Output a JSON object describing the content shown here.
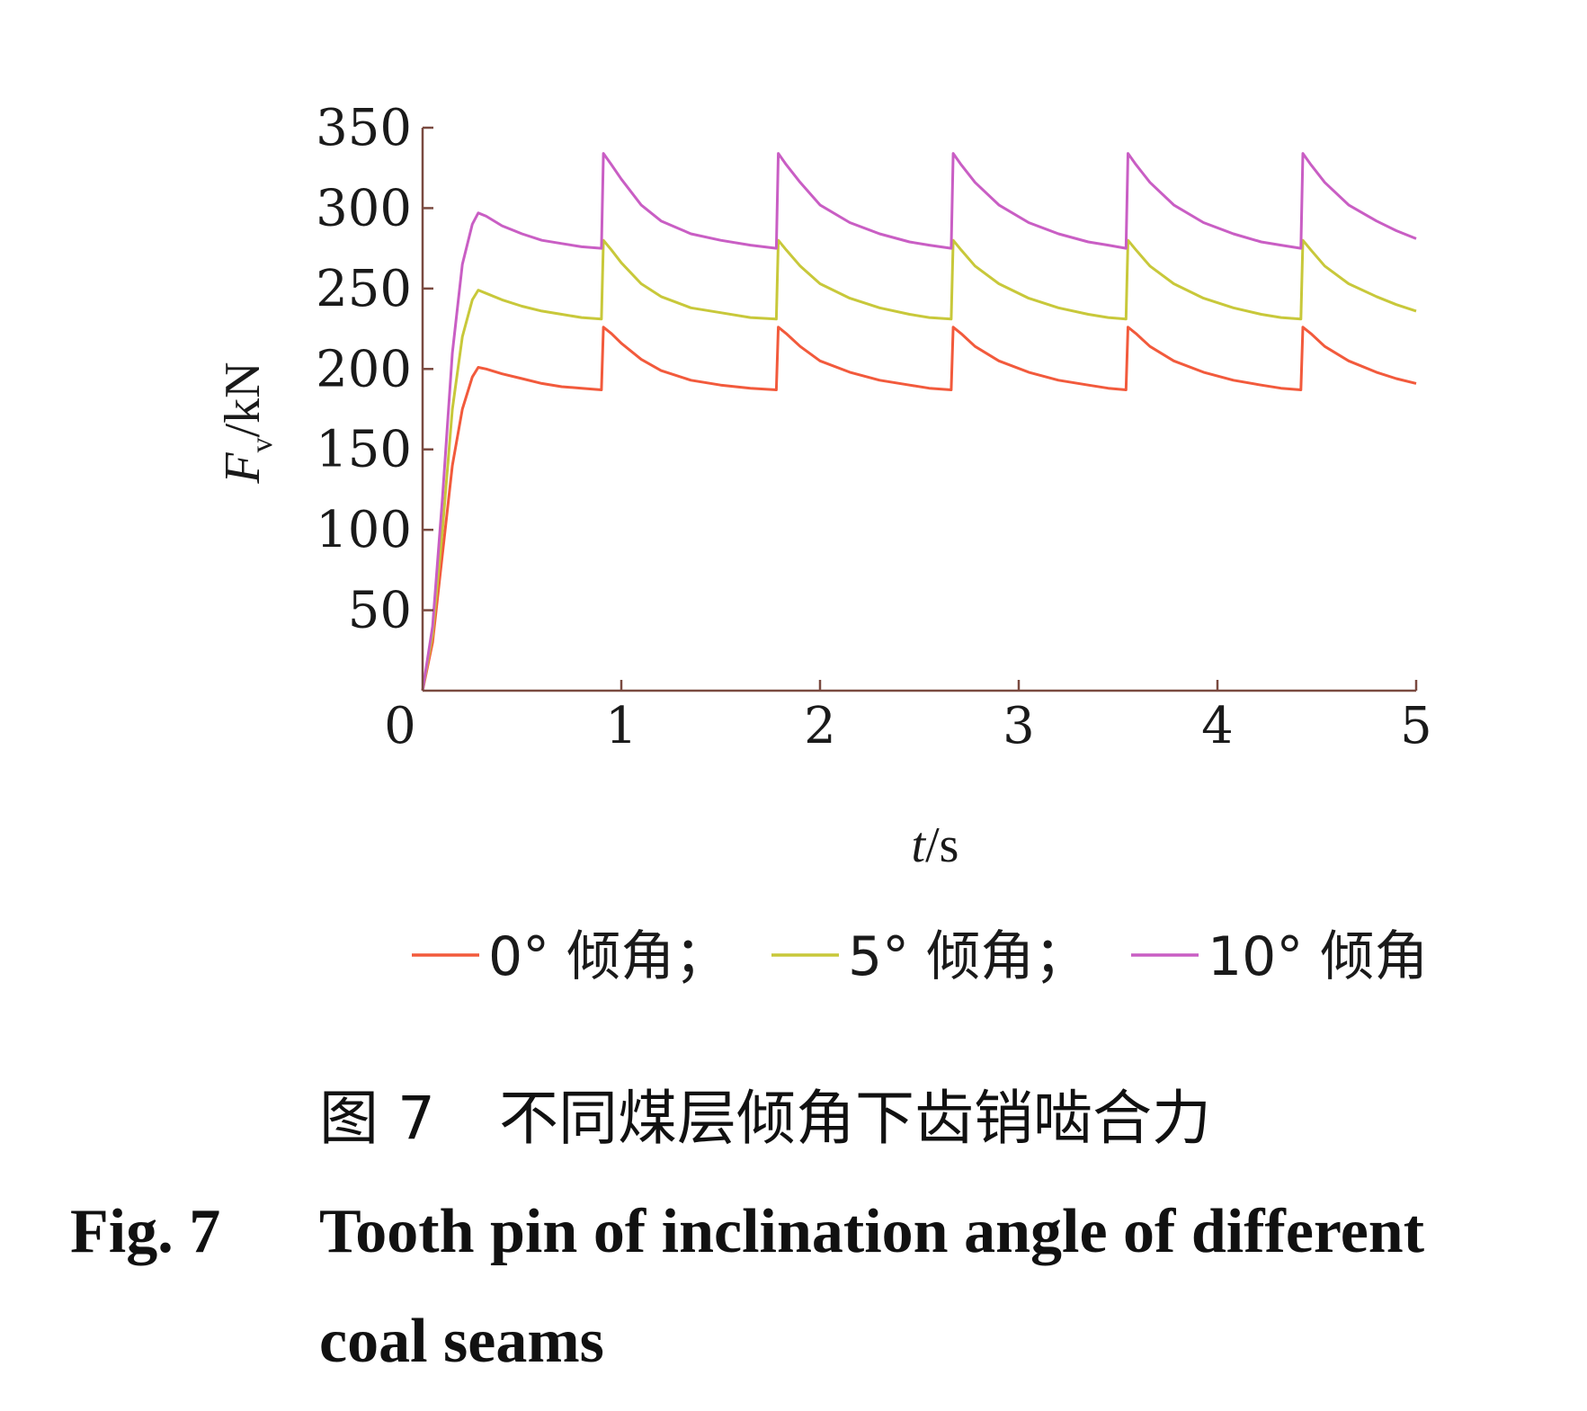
{
  "chart_data": {
    "type": "line",
    "xlabel": "t/s",
    "ylabel": "Fv/kN",
    "xlim": [
      0,
      5
    ],
    "ylim": [
      0,
      350
    ],
    "x_ticks": [
      "0",
      "1",
      "2",
      "3",
      "4",
      "5"
    ],
    "y_ticks": [
      "50",
      "100",
      "150",
      "200",
      "250",
      "300",
      "350"
    ],
    "grid": false,
    "legend_position": "bottom",
    "series": [
      {
        "name": "0° 倾角；",
        "color": "#f25a3c",
        "points": [
          [
            0,
            0
          ],
          [
            0.05,
            30
          ],
          [
            0.1,
            85
          ],
          [
            0.15,
            140
          ],
          [
            0.2,
            175
          ],
          [
            0.25,
            195
          ],
          [
            0.28,
            201
          ],
          [
            0.32,
            200
          ],
          [
            0.4,
            197
          ],
          [
            0.5,
            194
          ],
          [
            0.6,
            191
          ],
          [
            0.7,
            189
          ],
          [
            0.8,
            188
          ],
          [
            0.9,
            187
          ],
          [
            0.9,
            187
          ],
          [
            0.91,
            226
          ],
          [
            0.95,
            222
          ],
          [
            1.0,
            216
          ],
          [
            1.1,
            206
          ],
          [
            1.2,
            199
          ],
          [
            1.35,
            193
          ],
          [
            1.5,
            190
          ],
          [
            1.65,
            188
          ],
          [
            1.78,
            187
          ],
          [
            1.78,
            187
          ],
          [
            1.79,
            226
          ],
          [
            1.83,
            222
          ],
          [
            1.9,
            214
          ],
          [
            2.0,
            205
          ],
          [
            2.15,
            198
          ],
          [
            2.3,
            193
          ],
          [
            2.45,
            190
          ],
          [
            2.55,
            188
          ],
          [
            2.66,
            187
          ],
          [
            2.66,
            187
          ],
          [
            2.67,
            226
          ],
          [
            2.71,
            222
          ],
          [
            2.78,
            214
          ],
          [
            2.9,
            205
          ],
          [
            3.05,
            198
          ],
          [
            3.2,
            193
          ],
          [
            3.35,
            190
          ],
          [
            3.45,
            188
          ],
          [
            3.54,
            187
          ],
          [
            3.54,
            187
          ],
          [
            3.55,
            226
          ],
          [
            3.59,
            222
          ],
          [
            3.66,
            214
          ],
          [
            3.78,
            205
          ],
          [
            3.93,
            198
          ],
          [
            4.08,
            193
          ],
          [
            4.22,
            190
          ],
          [
            4.32,
            188
          ],
          [
            4.42,
            187
          ],
          [
            4.42,
            187
          ],
          [
            4.43,
            226
          ],
          [
            4.47,
            222
          ],
          [
            4.54,
            214
          ],
          [
            4.66,
            205
          ],
          [
            4.8,
            198
          ],
          [
            4.9,
            194
          ],
          [
            5.0,
            191
          ]
        ]
      },
      {
        "name": "5° 倾角；",
        "color": "#c8c83a",
        "points": [
          [
            0,
            0
          ],
          [
            0.05,
            35
          ],
          [
            0.1,
            100
          ],
          [
            0.15,
            175
          ],
          [
            0.2,
            220
          ],
          [
            0.25,
            243
          ],
          [
            0.28,
            249
          ],
          [
            0.32,
            247
          ],
          [
            0.4,
            243
          ],
          [
            0.5,
            239
          ],
          [
            0.6,
            236
          ],
          [
            0.7,
            234
          ],
          [
            0.8,
            232
          ],
          [
            0.9,
            231
          ],
          [
            0.9,
            231
          ],
          [
            0.91,
            280
          ],
          [
            0.95,
            274
          ],
          [
            1.0,
            266
          ],
          [
            1.1,
            253
          ],
          [
            1.2,
            245
          ],
          [
            1.35,
            238
          ],
          [
            1.5,
            235
          ],
          [
            1.65,
            232
          ],
          [
            1.78,
            231
          ],
          [
            1.78,
            231
          ],
          [
            1.79,
            280
          ],
          [
            1.83,
            274
          ],
          [
            1.9,
            264
          ],
          [
            2.0,
            253
          ],
          [
            2.15,
            244
          ],
          [
            2.3,
            238
          ],
          [
            2.45,
            234
          ],
          [
            2.55,
            232
          ],
          [
            2.66,
            231
          ],
          [
            2.66,
            231
          ],
          [
            2.67,
            280
          ],
          [
            2.71,
            274
          ],
          [
            2.78,
            264
          ],
          [
            2.9,
            253
          ],
          [
            3.05,
            244
          ],
          [
            3.2,
            238
          ],
          [
            3.35,
            234
          ],
          [
            3.45,
            232
          ],
          [
            3.54,
            231
          ],
          [
            3.54,
            231
          ],
          [
            3.55,
            280
          ],
          [
            3.59,
            274
          ],
          [
            3.66,
            264
          ],
          [
            3.78,
            253
          ],
          [
            3.93,
            244
          ],
          [
            4.08,
            238
          ],
          [
            4.22,
            234
          ],
          [
            4.32,
            232
          ],
          [
            4.42,
            231
          ],
          [
            4.42,
            231
          ],
          [
            4.43,
            280
          ],
          [
            4.47,
            274
          ],
          [
            4.54,
            264
          ],
          [
            4.66,
            253
          ],
          [
            4.8,
            245
          ],
          [
            4.9,
            240
          ],
          [
            5.0,
            236
          ]
        ]
      },
      {
        "name": "10° 倾角",
        "color": "#c95ec4",
        "points": [
          [
            0,
            0
          ],
          [
            0.05,
            40
          ],
          [
            0.1,
            120
          ],
          [
            0.15,
            210
          ],
          [
            0.2,
            265
          ],
          [
            0.25,
            290
          ],
          [
            0.28,
            297
          ],
          [
            0.32,
            295
          ],
          [
            0.4,
            289
          ],
          [
            0.5,
            284
          ],
          [
            0.6,
            280
          ],
          [
            0.7,
            278
          ],
          [
            0.8,
            276
          ],
          [
            0.9,
            275
          ],
          [
            0.9,
            275
          ],
          [
            0.91,
            334
          ],
          [
            0.95,
            327
          ],
          [
            1.0,
            318
          ],
          [
            1.1,
            302
          ],
          [
            1.2,
            292
          ],
          [
            1.35,
            284
          ],
          [
            1.5,
            280
          ],
          [
            1.65,
            277
          ],
          [
            1.78,
            275
          ],
          [
            1.78,
            275
          ],
          [
            1.79,
            334
          ],
          [
            1.83,
            327
          ],
          [
            1.9,
            316
          ],
          [
            2.0,
            302
          ],
          [
            2.15,
            291
          ],
          [
            2.3,
            284
          ],
          [
            2.45,
            279
          ],
          [
            2.55,
            277
          ],
          [
            2.66,
            275
          ],
          [
            2.66,
            275
          ],
          [
            2.67,
            334
          ],
          [
            2.71,
            327
          ],
          [
            2.78,
            316
          ],
          [
            2.9,
            302
          ],
          [
            3.05,
            291
          ],
          [
            3.2,
            284
          ],
          [
            3.35,
            279
          ],
          [
            3.45,
            277
          ],
          [
            3.54,
            275
          ],
          [
            3.54,
            275
          ],
          [
            3.55,
            334
          ],
          [
            3.59,
            327
          ],
          [
            3.66,
            316
          ],
          [
            3.78,
            302
          ],
          [
            3.93,
            291
          ],
          [
            4.08,
            284
          ],
          [
            4.22,
            279
          ],
          [
            4.32,
            277
          ],
          [
            4.42,
            275
          ],
          [
            4.42,
            275
          ],
          [
            4.43,
            334
          ],
          [
            4.47,
            327
          ],
          [
            4.54,
            316
          ],
          [
            4.66,
            302
          ],
          [
            4.8,
            292
          ],
          [
            4.9,
            286
          ],
          [
            5.0,
            281
          ]
        ]
      }
    ]
  },
  "caption": {
    "cn_label": "图 7",
    "cn_title": "不同煤层倾角下齿销啮合力",
    "en_label": "Fig. 7",
    "en_title_line1": "Tooth pin of inclination angle of different",
    "en_title_line2": "coal seams"
  }
}
